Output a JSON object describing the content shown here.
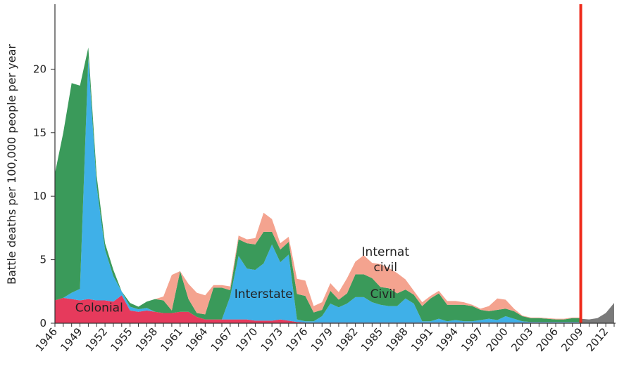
{
  "chart_data": {
    "type": "area",
    "stacked": true,
    "ylabel": "Battle deaths per 100,000 people per year",
    "xlabel": "",
    "ylim": [
      0,
      25
    ],
    "xlim": [
      1946,
      2013
    ],
    "y_ticks": [
      0,
      5,
      10,
      15,
      20
    ],
    "x_ticks": [
      "1946",
      "1949",
      "1952",
      "1955",
      "1958",
      "1961",
      "1964",
      "1967",
      "1970",
      "1973",
      "1976",
      "1979",
      "1982",
      "1985",
      "1988",
      "1991",
      "1994",
      "1997",
      "2000",
      "2003",
      "2006",
      "2009",
      "2012"
    ],
    "x": [
      1946,
      1947,
      1948,
      1949,
      1950,
      1951,
      1952,
      1953,
      1954,
      1955,
      1956,
      1957,
      1958,
      1959,
      1960,
      1961,
      1962,
      1963,
      1964,
      1965,
      1966,
      1967,
      1968,
      1969,
      1970,
      1971,
      1972,
      1973,
      1974,
      1975,
      1976,
      1977,
      1978,
      1979,
      1980,
      1981,
      1982,
      1983,
      1984,
      1985,
      1986,
      1987,
      1988,
      1989,
      1990,
      1991,
      1992,
      1993,
      1994,
      1995,
      1996,
      1997,
      1998,
      1999,
      2000,
      2001,
      2002,
      2003,
      2004,
      2005,
      2006,
      2007,
      2008,
      2009
    ],
    "series": [
      {
        "name": "Colonial",
        "color": "#e63a5c",
        "values": [
          1.8,
          2.0,
          1.9,
          1.8,
          1.9,
          1.8,
          1.8,
          1.7,
          2.2,
          1.0,
          0.9,
          1.0,
          0.9,
          0.8,
          0.8,
          0.9,
          0.9,
          0.5,
          0.3,
          0.3,
          0.3,
          0.3,
          0.3,
          0.3,
          0.2,
          0.2,
          0.2,
          0.3,
          0.2,
          0.1,
          0.05,
          0.05,
          0.05,
          0.05,
          0.05,
          0.05,
          0.05,
          0.05,
          0.05,
          0.05,
          0.05,
          0.05,
          0.05,
          0.05,
          0.05,
          0.05,
          0.05,
          0.05,
          0.05,
          0.05,
          0.05,
          0.05,
          0.05,
          0.05,
          0.05,
          0.05,
          0.05,
          0.05,
          0.05,
          0.05,
          0.05,
          0.05,
          0.05,
          0.05
        ]
      },
      {
        "name": "Interstate",
        "color": "#3fb0e8",
        "values": [
          0.0,
          0.0,
          0.5,
          0.9,
          19.0,
          9.0,
          4.0,
          2.0,
          0.3,
          0.3,
          0.2,
          0.2,
          0.0,
          0.0,
          0.0,
          0.0,
          0.0,
          0.0,
          0.0,
          0.0,
          0.0,
          1.8,
          5.0,
          4.0,
          4.0,
          4.5,
          6.0,
          4.5,
          5.2,
          0.2,
          0.1,
          0.1,
          0.5,
          1.5,
          1.2,
          1.5,
          2.0,
          2.0,
          1.6,
          1.4,
          1.3,
          1.3,
          1.9,
          1.5,
          0.1,
          0.1,
          0.3,
          0.1,
          0.2,
          0.1,
          0.1,
          0.2,
          0.3,
          0.2,
          0.5,
          0.3,
          0.1,
          0.05,
          0.05,
          0.05,
          0.05,
          0.05,
          0.05,
          0.05
        ]
      },
      {
        "name": "Civil",
        "color": "#3a9a5a",
        "values": [
          10.0,
          13.0,
          16.5,
          16.0,
          0.8,
          0.8,
          0.5,
          0.5,
          0.0,
          0.3,
          0.2,
          0.5,
          1.0,
          1.0,
          0.2,
          3.2,
          1.0,
          0.3,
          0.4,
          2.5,
          2.5,
          0.5,
          1.3,
          2.0,
          2.0,
          2.5,
          1.0,
          1.0,
          1.0,
          2.0,
          2.0,
          0.7,
          0.5,
          1.0,
          0.6,
          0.8,
          1.8,
          1.8,
          1.9,
          1.4,
          1.4,
          1.0,
          0.7,
          0.7,
          1.2,
          1.8,
          2.0,
          1.3,
          1.2,
          1.3,
          1.2,
          0.8,
          0.6,
          0.8,
          0.6,
          0.6,
          0.4,
          0.3,
          0.3,
          0.25,
          0.2,
          0.2,
          0.3,
          0.3
        ]
      },
      {
        "name": "Internat civil",
        "color": "#f4a38f",
        "values": [
          0.0,
          0.0,
          0.0,
          0.0,
          0.0,
          0.0,
          0.0,
          0.0,
          0.0,
          0.0,
          0.0,
          0.0,
          0.0,
          0.3,
          2.8,
          0.0,
          1.2,
          1.6,
          1.5,
          0.2,
          0.2,
          0.3,
          0.3,
          0.3,
          0.5,
          1.5,
          1.0,
          0.5,
          0.4,
          1.2,
          1.2,
          0.5,
          0.6,
          0.6,
          0.6,
          1.2,
          1.0,
          1.5,
          1.2,
          1.8,
          1.6,
          1.6,
          0.8,
          0.3,
          0.3,
          0.2,
          0.2,
          0.3,
          0.3,
          0.2,
          0.1,
          0.1,
          0.4,
          0.9,
          0.7,
          0.2,
          0.05,
          0.05,
          0.05,
          0.05,
          0.05,
          0.05,
          0.05,
          0.05
        ]
      }
    ],
    "recent_series": {
      "name": "",
      "color": "#7a7a7a",
      "x": [
        2009,
        2010,
        2011,
        2012,
        2013
      ],
      "values": [
        0.35,
        0.3,
        0.4,
        0.8,
        1.6
      ]
    },
    "marker_line": {
      "x": 2009,
      "color": "#ee2a1a"
    },
    "labels": [
      {
        "text": "Colonial",
        "x": 1951.3,
        "y": 0.9
      },
      {
        "text": "Interstate",
        "x": 1971.0,
        "y": 2.0
      },
      {
        "text": "Internat",
        "x": 1985.6,
        "y": 5.3
      },
      {
        "text": "civil",
        "x": 1985.6,
        "y": 4.1
      },
      {
        "text": "Civil",
        "x": 1985.3,
        "y": 2.0
      }
    ]
  }
}
